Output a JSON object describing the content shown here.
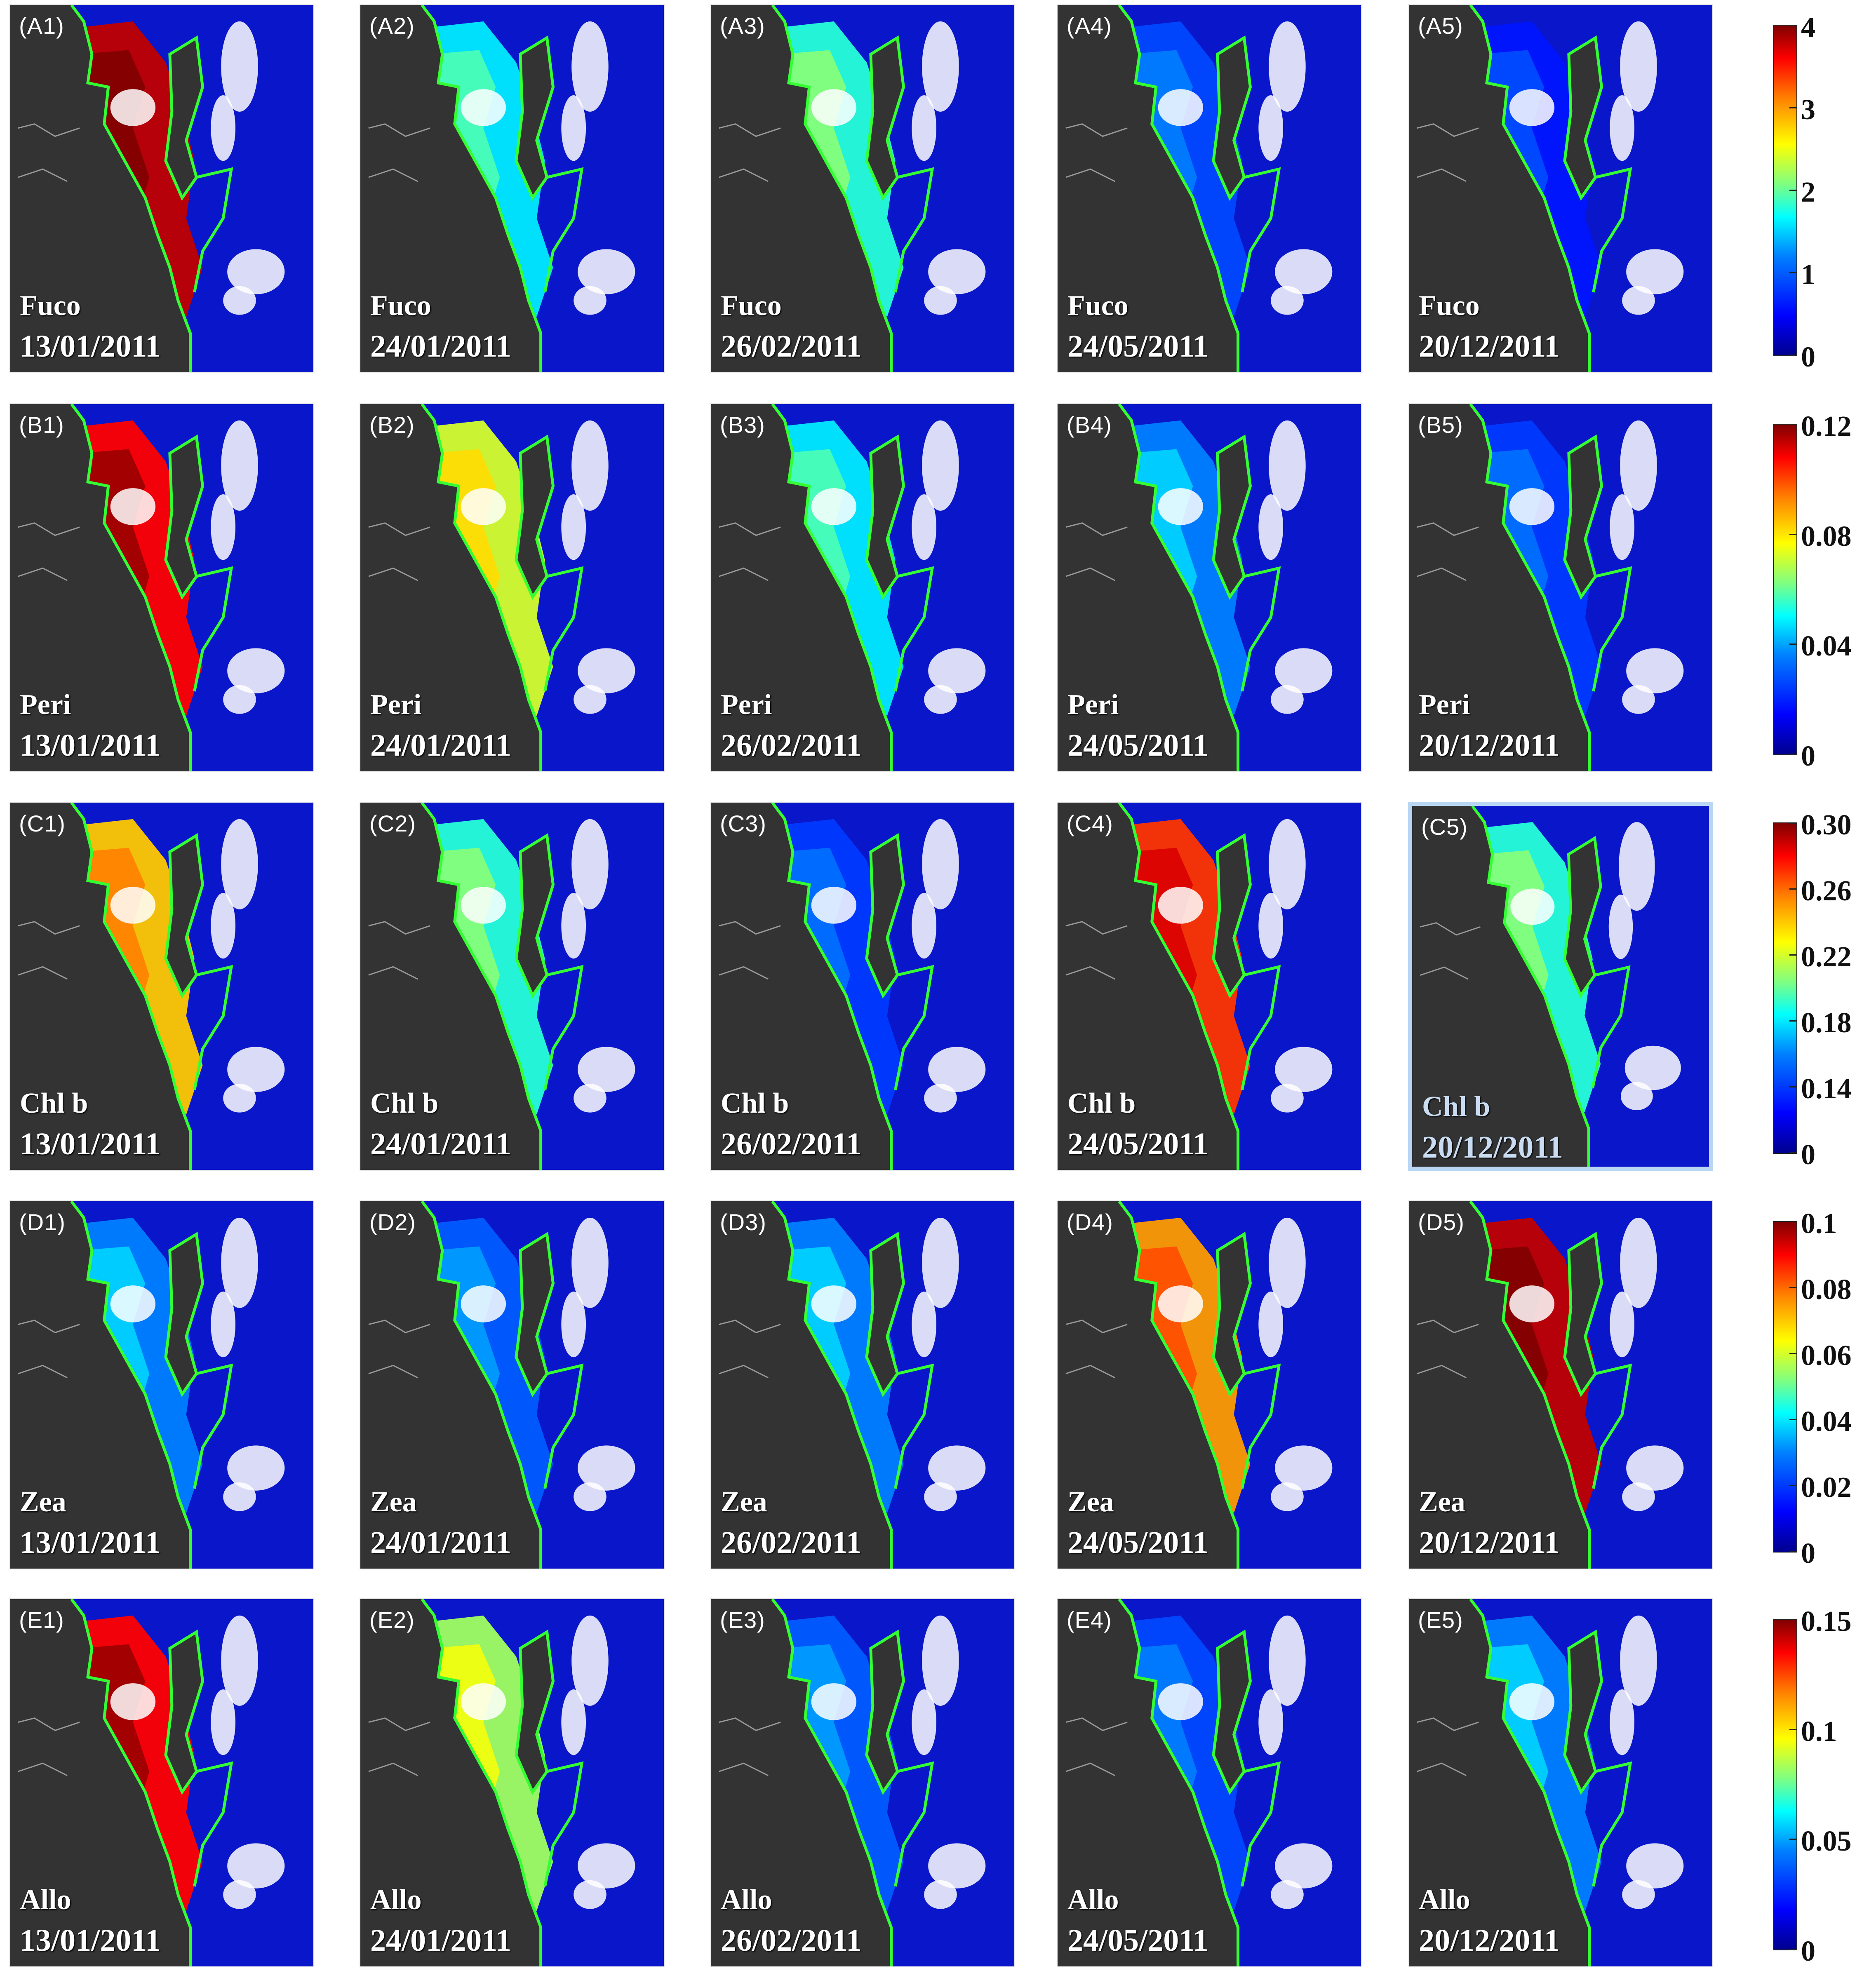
{
  "pigments": [
    {
      "row": "A",
      "name": "Fuco",
      "ticks": [
        "4",
        "3",
        "2",
        "1",
        "0"
      ]
    },
    {
      "row": "B",
      "name": "Peri",
      "ticks": [
        "0.12",
        "0.08",
        "0.04",
        "0"
      ]
    },
    {
      "row": "C",
      "name": "Chl b",
      "ticks": [
        "0.30",
        "0.26",
        "0.22",
        "0.18",
        "0.14",
        "0"
      ]
    },
    {
      "row": "D",
      "name": "Zea",
      "ticks": [
        "0.1",
        "0.08",
        "0.06",
        "0.04",
        "0.02",
        "0"
      ]
    },
    {
      "row": "E",
      "name": "Allo",
      "ticks": [
        "0.15",
        "0.1",
        "0.05",
        "0"
      ]
    }
  ],
  "dates": [
    "13/01/2011",
    "24/01/2011",
    "26/02/2011",
    "24/05/2011",
    "20/12/2011"
  ],
  "panel_labels": [
    [
      "(A1)",
      "(A2)",
      "(A3)",
      "(A4)",
      "(A5)"
    ],
    [
      "(B1)",
      "(B2)",
      "(B3)",
      "(B4)",
      "(B5)"
    ],
    [
      "(C1)",
      "(C2)",
      "(C3)",
      "(C4)",
      "(C5)"
    ],
    [
      "(D1)",
      "(D2)",
      "(D3)",
      "(D4)",
      "(D5)"
    ],
    [
      "(E1)",
      "(E2)",
      "(E3)",
      "(E4)",
      "(E5)"
    ]
  ],
  "highlighted_panel": "(C5)",
  "plume_intensity": [
    [
      0.95,
      0.4,
      0.45,
      0.22,
      0.15
    ],
    [
      0.9,
      0.6,
      0.4,
      0.3,
      0.2
    ],
    [
      0.7,
      0.45,
      0.2,
      0.85,
      0.45
    ],
    [
      0.3,
      0.25,
      0.3,
      0.75,
      0.95
    ],
    [
      0.9,
      0.55,
      0.25,
      0.22,
      0.3
    ]
  ],
  "colors": {
    "land": "#333333",
    "ocean": "#0a16c9",
    "boundary": "#33ff33",
    "cloud": "#ffffff"
  }
}
